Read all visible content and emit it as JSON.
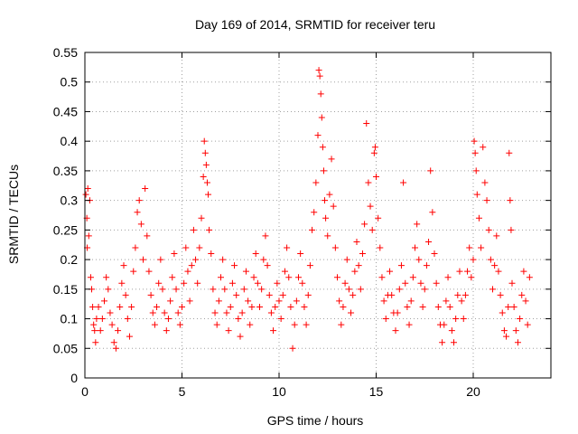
{
  "chart_data": {
    "type": "scatter",
    "title": "Day 169 of 2014, SRMTID for receiver teru",
    "xlabel": "GPS time / hours",
    "ylabel": "SRMTID / TECUs",
    "xlim": [
      0,
      24
    ],
    "ylim": [
      0,
      0.55
    ],
    "x_ticks": [
      0,
      5,
      10,
      15,
      20
    ],
    "y_ticks": [
      0,
      0.05,
      0.1,
      0.15,
      0.2,
      0.25,
      0.3,
      0.35,
      0.4,
      0.45,
      0.5,
      0.55
    ],
    "grid": true,
    "marker": "+",
    "color": "#ff0000",
    "series": [
      {
        "name": "SRMTID",
        "points": [
          [
            0.05,
            0.31
          ],
          [
            0.1,
            0.27
          ],
          [
            0.12,
            0.22
          ],
          [
            0.15,
            0.32
          ],
          [
            0.2,
            0.24
          ],
          [
            0.25,
            0.3
          ],
          [
            0.3,
            0.17
          ],
          [
            0.35,
            0.15
          ],
          [
            0.4,
            0.12
          ],
          [
            0.45,
            0.09
          ],
          [
            0.5,
            0.08
          ],
          [
            0.55,
            0.06
          ],
          [
            0.6,
            0.1
          ],
          [
            0.7,
            0.12
          ],
          [
            0.8,
            0.08
          ],
          [
            0.9,
            0.1
          ],
          [
            1.0,
            0.13
          ],
          [
            1.1,
            0.17
          ],
          [
            1.2,
            0.15
          ],
          [
            1.3,
            0.11
          ],
          [
            1.4,
            0.09
          ],
          [
            1.5,
            0.06
          ],
          [
            1.6,
            0.05
          ],
          [
            1.7,
            0.08
          ],
          [
            1.8,
            0.12
          ],
          [
            1.9,
            0.16
          ],
          [
            2.0,
            0.19
          ],
          [
            2.1,
            0.14
          ],
          [
            2.2,
            0.1
          ],
          [
            2.3,
            0.07
          ],
          [
            2.4,
            0.12
          ],
          [
            2.5,
            0.18
          ],
          [
            2.6,
            0.22
          ],
          [
            2.7,
            0.28
          ],
          [
            2.8,
            0.3
          ],
          [
            2.9,
            0.26
          ],
          [
            3.0,
            0.2
          ],
          [
            3.1,
            0.32
          ],
          [
            3.2,
            0.24
          ],
          [
            3.3,
            0.18
          ],
          [
            3.4,
            0.14
          ],
          [
            3.5,
            0.11
          ],
          [
            3.6,
            0.09
          ],
          [
            3.7,
            0.12
          ],
          [
            3.8,
            0.16
          ],
          [
            3.9,
            0.2
          ],
          [
            4.0,
            0.15
          ],
          [
            4.1,
            0.11
          ],
          [
            4.2,
            0.08
          ],
          [
            4.3,
            0.1
          ],
          [
            4.4,
            0.13
          ],
          [
            4.5,
            0.17
          ],
          [
            4.6,
            0.21
          ],
          [
            4.7,
            0.15
          ],
          [
            4.8,
            0.11
          ],
          [
            4.9,
            0.09
          ],
          [
            5.0,
            0.12
          ],
          [
            5.1,
            0.16
          ],
          [
            5.2,
            0.22
          ],
          [
            5.3,
            0.18
          ],
          [
            5.4,
            0.13
          ],
          [
            5.5,
            0.19
          ],
          [
            5.6,
            0.25
          ],
          [
            5.7,
            0.2
          ],
          [
            5.8,
            0.16
          ],
          [
            5.9,
            0.22
          ],
          [
            6.0,
            0.27
          ],
          [
            6.1,
            0.34
          ],
          [
            6.15,
            0.4
          ],
          [
            6.2,
            0.38
          ],
          [
            6.25,
            0.36
          ],
          [
            6.3,
            0.33
          ],
          [
            6.35,
            0.31
          ],
          [
            6.4,
            0.25
          ],
          [
            6.5,
            0.21
          ],
          [
            6.6,
            0.15
          ],
          [
            6.7,
            0.11
          ],
          [
            6.8,
            0.09
          ],
          [
            6.9,
            0.13
          ],
          [
            7.0,
            0.17
          ],
          [
            7.1,
            0.2
          ],
          [
            7.2,
            0.15
          ],
          [
            7.3,
            0.11
          ],
          [
            7.4,
            0.08
          ],
          [
            7.5,
            0.12
          ],
          [
            7.6,
            0.16
          ],
          [
            7.7,
            0.19
          ],
          [
            7.8,
            0.14
          ],
          [
            7.9,
            0.1
          ],
          [
            8.0,
            0.07
          ],
          [
            8.1,
            0.11
          ],
          [
            8.2,
            0.15
          ],
          [
            8.3,
            0.18
          ],
          [
            8.4,
            0.13
          ],
          [
            8.5,
            0.09
          ],
          [
            8.6,
            0.12
          ],
          [
            8.7,
            0.17
          ],
          [
            8.8,
            0.21
          ],
          [
            8.9,
            0.16
          ],
          [
            9.0,
            0.12
          ],
          [
            9.1,
            0.15
          ],
          [
            9.2,
            0.2
          ],
          [
            9.3,
            0.24
          ],
          [
            9.4,
            0.19
          ],
          [
            9.5,
            0.14
          ],
          [
            9.6,
            0.11
          ],
          [
            9.7,
            0.08
          ],
          [
            9.8,
            0.12
          ],
          [
            9.9,
            0.16
          ],
          [
            10.0,
            0.13
          ],
          [
            10.1,
            0.1
          ],
          [
            10.2,
            0.14
          ],
          [
            10.3,
            0.18
          ],
          [
            10.4,
            0.22
          ],
          [
            10.5,
            0.17
          ],
          [
            10.6,
            0.12
          ],
          [
            10.7,
            0.05
          ],
          [
            10.8,
            0.09
          ],
          [
            10.9,
            0.13
          ],
          [
            11.0,
            0.17
          ],
          [
            11.1,
            0.21
          ],
          [
            11.2,
            0.16
          ],
          [
            11.3,
            0.12
          ],
          [
            11.4,
            0.09
          ],
          [
            11.5,
            0.14
          ],
          [
            11.6,
            0.19
          ],
          [
            11.7,
            0.25
          ],
          [
            11.8,
            0.28
          ],
          [
            11.9,
            0.33
          ],
          [
            12.0,
            0.41
          ],
          [
            12.05,
            0.52
          ],
          [
            12.1,
            0.51
          ],
          [
            12.15,
            0.48
          ],
          [
            12.2,
            0.44
          ],
          [
            12.25,
            0.39
          ],
          [
            12.3,
            0.35
          ],
          [
            12.35,
            0.3
          ],
          [
            12.4,
            0.27
          ],
          [
            12.5,
            0.24
          ],
          [
            12.6,
            0.31
          ],
          [
            12.7,
            0.37
          ],
          [
            12.8,
            0.29
          ],
          [
            12.9,
            0.22
          ],
          [
            13.0,
            0.17
          ],
          [
            13.1,
            0.13
          ],
          [
            13.2,
            0.09
          ],
          [
            13.3,
            0.12
          ],
          [
            13.4,
            0.16
          ],
          [
            13.5,
            0.2
          ],
          [
            13.6,
            0.15
          ],
          [
            13.7,
            0.11
          ],
          [
            13.8,
            0.14
          ],
          [
            13.9,
            0.18
          ],
          [
            14.0,
            0.23
          ],
          [
            14.1,
            0.19
          ],
          [
            14.2,
            0.15
          ],
          [
            14.3,
            0.21
          ],
          [
            14.4,
            0.26
          ],
          [
            14.5,
            0.43
          ],
          [
            14.6,
            0.33
          ],
          [
            14.7,
            0.29
          ],
          [
            14.8,
            0.25
          ],
          [
            14.9,
            0.38
          ],
          [
            14.95,
            0.39
          ],
          [
            15.0,
            0.34
          ],
          [
            15.1,
            0.27
          ],
          [
            15.2,
            0.22
          ],
          [
            15.3,
            0.17
          ],
          [
            15.4,
            0.13
          ],
          [
            15.5,
            0.1
          ],
          [
            15.6,
            0.14
          ],
          [
            15.7,
            0.18
          ],
          [
            15.8,
            0.14
          ],
          [
            15.9,
            0.11
          ],
          [
            16.0,
            0.08
          ],
          [
            16.1,
            0.11
          ],
          [
            16.2,
            0.15
          ],
          [
            16.3,
            0.19
          ],
          [
            16.4,
            0.33
          ],
          [
            16.5,
            0.16
          ],
          [
            16.6,
            0.12
          ],
          [
            16.7,
            0.09
          ],
          [
            16.8,
            0.13
          ],
          [
            16.9,
            0.17
          ],
          [
            17.0,
            0.22
          ],
          [
            17.1,
            0.26
          ],
          [
            17.2,
            0.2
          ],
          [
            17.3,
            0.16
          ],
          [
            17.4,
            0.12
          ],
          [
            17.5,
            0.15
          ],
          [
            17.6,
            0.19
          ],
          [
            17.7,
            0.23
          ],
          [
            17.8,
            0.35
          ],
          [
            17.9,
            0.28
          ],
          [
            18.0,
            0.21
          ],
          [
            18.1,
            0.16
          ],
          [
            18.2,
            0.12
          ],
          [
            18.3,
            0.09
          ],
          [
            18.4,
            0.06
          ],
          [
            18.5,
            0.09
          ],
          [
            18.6,
            0.13
          ],
          [
            18.7,
            0.17
          ],
          [
            18.8,
            0.12
          ],
          [
            18.9,
            0.08
          ],
          [
            19.0,
            0.06
          ],
          [
            19.1,
            0.1
          ],
          [
            19.2,
            0.14
          ],
          [
            19.3,
            0.18
          ],
          [
            19.4,
            0.13
          ],
          [
            19.5,
            0.1
          ],
          [
            19.6,
            0.14
          ],
          [
            19.7,
            0.18
          ],
          [
            19.8,
            0.22
          ],
          [
            19.9,
            0.17
          ],
          [
            20.0,
            0.2
          ],
          [
            20.05,
            0.4
          ],
          [
            20.1,
            0.38
          ],
          [
            20.15,
            0.35
          ],
          [
            20.2,
            0.31
          ],
          [
            20.3,
            0.27
          ],
          [
            20.4,
            0.22
          ],
          [
            20.5,
            0.39
          ],
          [
            20.6,
            0.33
          ],
          [
            20.7,
            0.3
          ],
          [
            20.8,
            0.25
          ],
          [
            20.9,
            0.2
          ],
          [
            21.0,
            0.15
          ],
          [
            21.1,
            0.19
          ],
          [
            21.2,
            0.24
          ],
          [
            21.3,
            0.18
          ],
          [
            21.4,
            0.14
          ],
          [
            21.5,
            0.11
          ],
          [
            21.6,
            0.08
          ],
          [
            21.7,
            0.07
          ],
          [
            21.8,
            0.12
          ],
          [
            21.85,
            0.38
          ],
          [
            21.9,
            0.3
          ],
          [
            21.95,
            0.25
          ],
          [
            22.0,
            0.16
          ],
          [
            22.1,
            0.12
          ],
          [
            22.2,
            0.08
          ],
          [
            22.3,
            0.06
          ],
          [
            22.4,
            0.1
          ],
          [
            22.5,
            0.14
          ],
          [
            22.6,
            0.18
          ],
          [
            22.7,
            0.13
          ],
          [
            22.8,
            0.09
          ],
          [
            22.9,
            0.17
          ]
        ]
      }
    ]
  }
}
